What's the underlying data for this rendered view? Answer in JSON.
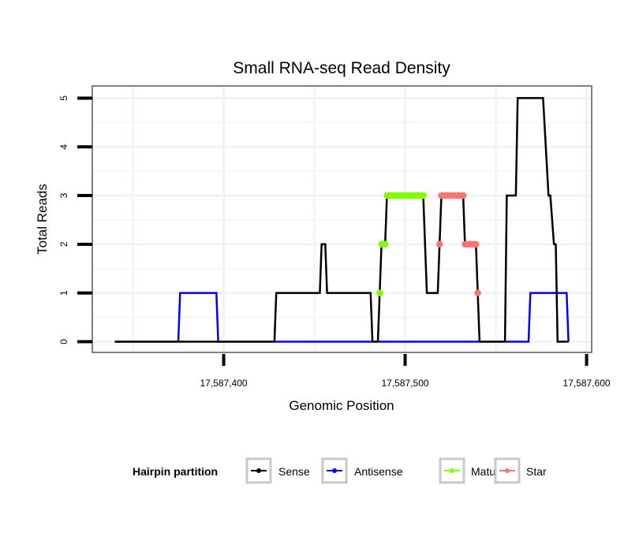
{
  "chart_data": {
    "type": "line",
    "title": "Small RNA-seq Read Density",
    "xlabel": "Genomic Position",
    "ylabel": "Total Reads",
    "xlim": [
      17587327.6,
      17587602.8
    ],
    "ylim": [
      -0.22,
      5.25
    ],
    "x_ticks": [
      17587400,
      17587500,
      17587600
    ],
    "x_tick_labels": [
      "17,587,400",
      "17,587,500",
      "17,587,600"
    ],
    "x_minor_grid": [
      17587350,
      17587450,
      17587550
    ],
    "y_ticks": [
      0,
      1,
      2,
      3,
      4,
      5
    ],
    "y_tick_labels": [
      "0",
      "1",
      "2",
      "3",
      "4",
      "5"
    ],
    "y_minor_grid": [
      0.5,
      1.5,
      2.5,
      3.5,
      4.5
    ],
    "grid": true,
    "legend": {
      "title": "Hairpin partition",
      "position": "bottom"
    },
    "series": [
      {
        "name": "Sense",
        "color": "#000000",
        "style": "line",
        "points": [
          [
            17587340,
            0
          ],
          [
            17587428,
            0
          ],
          [
            17587429,
            1
          ],
          [
            17587453,
            1
          ],
          [
            17587454,
            2
          ],
          [
            17587456,
            2
          ],
          [
            17587457,
            1
          ],
          [
            17587481,
            1
          ],
          [
            17587482,
            0
          ],
          [
            17587485,
            0
          ],
          [
            17587486,
            1
          ],
          [
            17587487,
            2
          ],
          [
            17587489,
            2
          ],
          [
            17587490,
            3
          ],
          [
            17587510,
            3
          ],
          [
            17587512,
            1
          ],
          [
            17587518,
            1
          ],
          [
            17587519,
            2
          ],
          [
            17587520,
            3
          ],
          [
            17587532,
            3
          ],
          [
            17587533,
            2
          ],
          [
            17587539,
            2
          ],
          [
            17587540,
            1
          ],
          [
            17587541,
            0
          ],
          [
            17587555,
            0
          ],
          [
            17587556,
            3
          ],
          [
            17587561,
            3
          ],
          [
            17587562,
            5
          ],
          [
            17587576,
            5
          ],
          [
            17587579,
            3
          ],
          [
            17587580,
            3
          ],
          [
            17587582,
            2
          ],
          [
            17587583,
            2
          ],
          [
            17587584,
            0
          ],
          [
            17587590,
            0
          ]
        ]
      },
      {
        "name": "Antisense",
        "color": "#0000FF",
        "style": "line",
        "points": [
          [
            17587340,
            0
          ],
          [
            17587375,
            0
          ],
          [
            17587376,
            1
          ],
          [
            17587396,
            1
          ],
          [
            17587397,
            0
          ],
          [
            17587568,
            0
          ],
          [
            17587569,
            1
          ],
          [
            17587589,
            1
          ],
          [
            17587590,
            0
          ]
        ]
      },
      {
        "name": "Mature",
        "color": "#7FFF00",
        "style": "points",
        "points": [
          [
            17587486,
            1
          ],
          [
            17587487,
            2
          ],
          [
            17587488,
            2
          ],
          [
            17587489,
            2
          ],
          [
            17587490,
            3
          ],
          [
            17587491,
            3
          ],
          [
            17587492,
            3
          ],
          [
            17587493,
            3
          ],
          [
            17587494,
            3
          ],
          [
            17587495,
            3
          ],
          [
            17587496,
            3
          ],
          [
            17587497,
            3
          ],
          [
            17587498,
            3
          ],
          [
            17587499,
            3
          ],
          [
            17587500,
            3
          ],
          [
            17587501,
            3
          ],
          [
            17587502,
            3
          ],
          [
            17587503,
            3
          ],
          [
            17587504,
            3
          ],
          [
            17587505,
            3
          ],
          [
            17587506,
            3
          ],
          [
            17587507,
            3
          ],
          [
            17587508,
            3
          ],
          [
            17587509,
            3
          ],
          [
            17587510,
            3
          ]
        ]
      },
      {
        "name": "Star",
        "color": "#F8766D",
        "style": "points",
        "points": [
          [
            17587519,
            2
          ],
          [
            17587520,
            3
          ],
          [
            17587521,
            3
          ],
          [
            17587522,
            3
          ],
          [
            17587523,
            3
          ],
          [
            17587524,
            3
          ],
          [
            17587525,
            3
          ],
          [
            17587526,
            3
          ],
          [
            17587527,
            3
          ],
          [
            17587528,
            3
          ],
          [
            17587529,
            3
          ],
          [
            17587530,
            3
          ],
          [
            17587531,
            3
          ],
          [
            17587532,
            3
          ],
          [
            17587533,
            2
          ],
          [
            17587534,
            2
          ],
          [
            17587535,
            2
          ],
          [
            17587536,
            2
          ],
          [
            17587537,
            2
          ],
          [
            17587538,
            2
          ],
          [
            17587539,
            2
          ],
          [
            17587540,
            1
          ]
        ]
      }
    ]
  }
}
